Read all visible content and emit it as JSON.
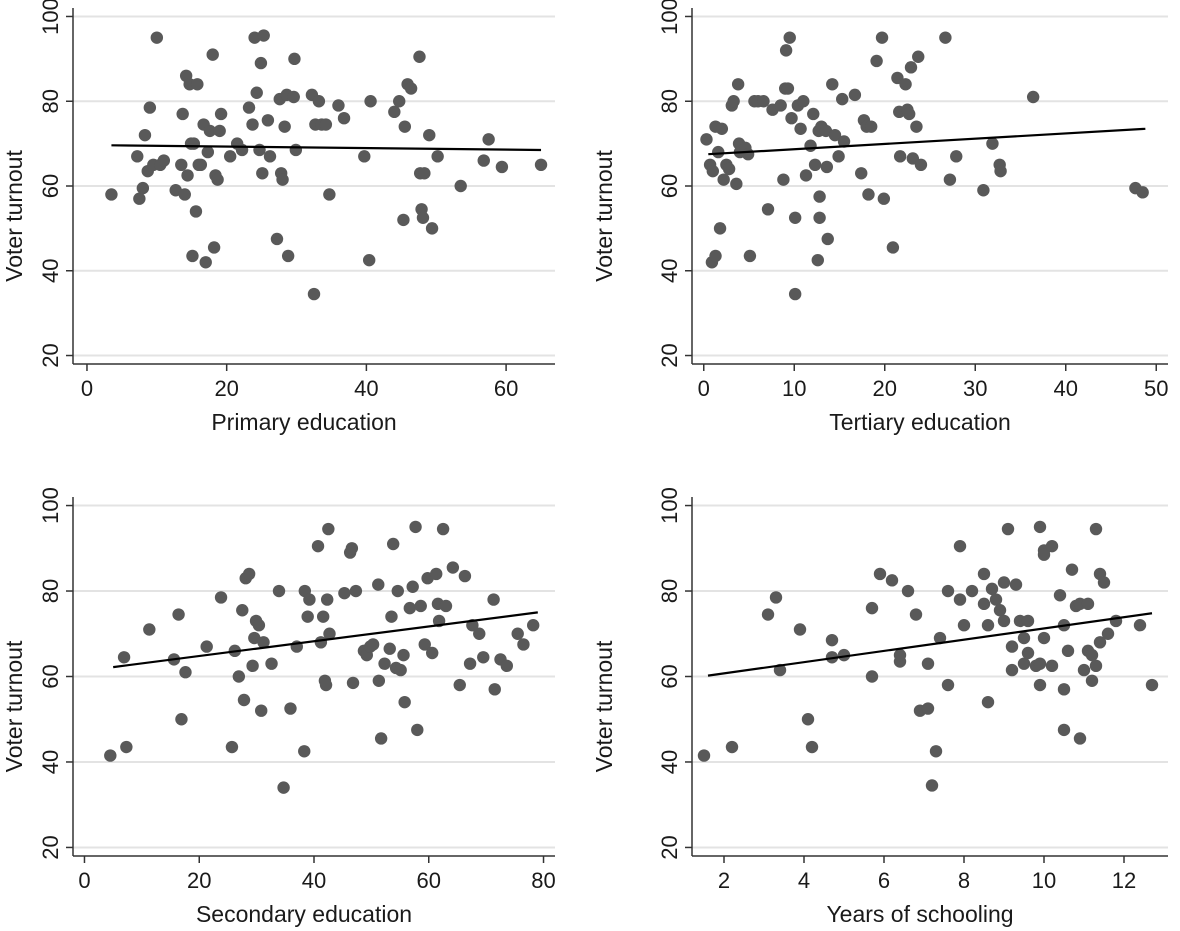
{
  "chart_data": [
    {
      "type": "scatter",
      "xlabel": "Primary education",
      "ylabel": "Voter turnout",
      "xlim": [
        -2,
        67
      ],
      "ylim": [
        18,
        102
      ],
      "xticks": [
        0,
        20,
        40,
        60
      ],
      "yticks": [
        20,
        40,
        60,
        80,
        100
      ],
      "grid": true,
      "fit_line": {
        "x": [
          3.5,
          65
        ],
        "y": [
          69.6,
          68.5
        ]
      },
      "points": [
        [
          3.5,
          58
        ],
        [
          7.2,
          67
        ],
        [
          7.5,
          57
        ],
        [
          8,
          59.5
        ],
        [
          8.3,
          72
        ],
        [
          8.7,
          63.5
        ],
        [
          9,
          78.5
        ],
        [
          9.5,
          65
        ],
        [
          10,
          95
        ],
        [
          10.5,
          65
        ],
        [
          11,
          66
        ],
        [
          12.7,
          59
        ],
        [
          13.5,
          65
        ],
        [
          13.7,
          77
        ],
        [
          14,
          58
        ],
        [
          14.2,
          86
        ],
        [
          14.4,
          62.5
        ],
        [
          14.7,
          84
        ],
        [
          14.9,
          70
        ],
        [
          15.1,
          43.5
        ],
        [
          15.3,
          70
        ],
        [
          15.6,
          54
        ],
        [
          15.8,
          84
        ],
        [
          16,
          65
        ],
        [
          16.3,
          65
        ],
        [
          16.7,
          74.5
        ],
        [
          17,
          42
        ],
        [
          17.3,
          68
        ],
        [
          17.6,
          73
        ],
        [
          18,
          91
        ],
        [
          18.2,
          45.5
        ],
        [
          18.4,
          62.5
        ],
        [
          18.7,
          61.5
        ],
        [
          19,
          73
        ],
        [
          19.2,
          77
        ],
        [
          20.5,
          67
        ],
        [
          21.5,
          70
        ],
        [
          22.2,
          68.5
        ],
        [
          23.2,
          78.5
        ],
        [
          23.7,
          74.5
        ],
        [
          24,
          95
        ],
        [
          24.3,
          82
        ],
        [
          24.7,
          68.5
        ],
        [
          24.9,
          89
        ],
        [
          25.1,
          63
        ],
        [
          25.3,
          95.5
        ],
        [
          25.9,
          75.5
        ],
        [
          26.2,
          67
        ],
        [
          27.2,
          47.5
        ],
        [
          27.6,
          80.5
        ],
        [
          27.8,
          63
        ],
        [
          28,
          61.5
        ],
        [
          28.3,
          74
        ],
        [
          28.6,
          81.5
        ],
        [
          28.8,
          43.5
        ],
        [
          29.6,
          81
        ],
        [
          29.7,
          90
        ],
        [
          29.9,
          68.5
        ],
        [
          32.2,
          81.5
        ],
        [
          32.5,
          34.5
        ],
        [
          32.7,
          74.5
        ],
        [
          33.2,
          80
        ],
        [
          33.6,
          74.5
        ],
        [
          34.2,
          74.5
        ],
        [
          34.7,
          58
        ],
        [
          36,
          79
        ],
        [
          36.8,
          76
        ],
        [
          39.7,
          67
        ],
        [
          40.4,
          42.5
        ],
        [
          40.6,
          80
        ],
        [
          44,
          77.5
        ],
        [
          44.7,
          80
        ],
        [
          45.3,
          52
        ],
        [
          45.5,
          74
        ],
        [
          45.9,
          84
        ],
        [
          46.4,
          83
        ],
        [
          47.6,
          90.5
        ],
        [
          47.7,
          63
        ],
        [
          47.9,
          54.5
        ],
        [
          48.1,
          52.5
        ],
        [
          48.3,
          63
        ],
        [
          49,
          72
        ],
        [
          49.4,
          50
        ],
        [
          50.2,
          67
        ],
        [
          53.5,
          60
        ],
        [
          56.8,
          66
        ],
        [
          57.5,
          71
        ],
        [
          59.4,
          64.5
        ],
        [
          65,
          65
        ]
      ]
    },
    {
      "type": "scatter",
      "xlabel": "Tertiary education",
      "ylabel": "Voter turnout",
      "xlim": [
        -1.3,
        51.3
      ],
      "ylim": [
        18,
        102
      ],
      "xticks": [
        0,
        10,
        20,
        30,
        40,
        50
      ],
      "yticks": [
        20,
        40,
        60,
        80,
        100
      ],
      "grid": true,
      "fit_line": {
        "x": [
          0.5,
          48.8
        ],
        "y": [
          67.5,
          73.5
        ]
      },
      "points": [
        [
          0.3,
          71
        ],
        [
          0.7,
          65
        ],
        [
          0.9,
          42
        ],
        [
          1,
          63.5
        ],
        [
          1.3,
          74
        ],
        [
          1.3,
          43.5
        ],
        [
          1.6,
          68
        ],
        [
          1.8,
          50
        ],
        [
          2,
          73.5
        ],
        [
          2.2,
          61.5
        ],
        [
          2.5,
          65
        ],
        [
          2.8,
          64
        ],
        [
          3.1,
          79
        ],
        [
          3.3,
          80
        ],
        [
          3.6,
          60.5
        ],
        [
          3.8,
          84
        ],
        [
          3.9,
          70
        ],
        [
          4,
          68
        ],
        [
          4.6,
          69
        ],
        [
          4.9,
          67.5
        ],
        [
          5.1,
          43.5
        ],
        [
          5.6,
          80
        ],
        [
          6,
          80
        ],
        [
          6.6,
          80
        ],
        [
          7.1,
          54.5
        ],
        [
          7.6,
          78
        ],
        [
          8.5,
          79
        ],
        [
          8.8,
          61.5
        ],
        [
          9,
          83
        ],
        [
          9.1,
          92
        ],
        [
          9.3,
          83
        ],
        [
          9.5,
          95
        ],
        [
          9.7,
          76
        ],
        [
          10.1,
          52.5
        ],
        [
          10.1,
          34.5
        ],
        [
          10.4,
          79
        ],
        [
          10.7,
          73.5
        ],
        [
          11,
          80
        ],
        [
          11.3,
          62.5
        ],
        [
          11.8,
          69.5
        ],
        [
          12.1,
          77
        ],
        [
          12.3,
          65
        ],
        [
          12.6,
          42.5
        ],
        [
          12.7,
          73
        ],
        [
          12.8,
          57.5
        ],
        [
          12.8,
          52.5
        ],
        [
          13,
          74
        ],
        [
          13.5,
          73
        ],
        [
          13.6,
          64.5
        ],
        [
          13.7,
          47.5
        ],
        [
          14.2,
          84
        ],
        [
          14.5,
          72
        ],
        [
          14.9,
          67
        ],
        [
          15.3,
          80.5
        ],
        [
          15.5,
          70.5
        ],
        [
          16.7,
          81.5
        ],
        [
          17.4,
          63
        ],
        [
          17.7,
          75.5
        ],
        [
          18,
          74
        ],
        [
          18.2,
          58
        ],
        [
          18.5,
          74
        ],
        [
          19.1,
          89.5
        ],
        [
          19.7,
          95
        ],
        [
          19.9,
          57
        ],
        [
          20.9,
          45.5
        ],
        [
          21.4,
          85.5
        ],
        [
          21.6,
          77.5
        ],
        [
          21.7,
          67
        ],
        [
          22.3,
          84
        ],
        [
          22.5,
          78
        ],
        [
          22.7,
          77
        ],
        [
          22.9,
          88
        ],
        [
          23.1,
          66.5
        ],
        [
          23.5,
          74
        ],
        [
          23.7,
          90.5
        ],
        [
          24,
          65
        ],
        [
          26.7,
          95
        ],
        [
          27.2,
          61.5
        ],
        [
          27.9,
          67
        ],
        [
          30.9,
          59
        ],
        [
          31.9,
          70
        ],
        [
          32.7,
          65
        ],
        [
          32.8,
          63.5
        ],
        [
          36.4,
          81
        ],
        [
          47.7,
          59.5
        ],
        [
          48.5,
          58.5
        ]
      ]
    },
    {
      "type": "scatter",
      "xlabel": "Secondary education",
      "ylabel": "Voter turnout",
      "xlim": [
        -2,
        82
      ],
      "ylim": [
        18,
        102
      ],
      "xticks": [
        0,
        20,
        40,
        60,
        80
      ],
      "yticks": [
        20,
        40,
        60,
        80,
        100
      ],
      "grid": true,
      "fit_line": {
        "x": [
          5,
          79
        ],
        "y": [
          62.2,
          75
        ]
      },
      "points": [
        [
          4.5,
          41.5
        ],
        [
          6.9,
          64.5
        ],
        [
          7.3,
          43.5
        ],
        [
          11.3,
          71
        ],
        [
          15.6,
          64
        ],
        [
          16.4,
          74.5
        ],
        [
          16.9,
          50
        ],
        [
          17.6,
          61
        ],
        [
          21.3,
          67
        ],
        [
          23.8,
          78.5
        ],
        [
          25.7,
          43.5
        ],
        [
          26.2,
          66
        ],
        [
          26.9,
          60
        ],
        [
          27.5,
          75.5
        ],
        [
          27.8,
          54.5
        ],
        [
          28.1,
          83
        ],
        [
          28.7,
          84
        ],
        [
          29.3,
          62.5
        ],
        [
          29.6,
          69
        ],
        [
          29.9,
          73
        ],
        [
          30.4,
          72
        ],
        [
          30.8,
          52
        ],
        [
          31.2,
          68
        ],
        [
          32.6,
          63
        ],
        [
          33.9,
          80
        ],
        [
          34.7,
          34
        ],
        [
          35.9,
          52.5
        ],
        [
          37,
          67
        ],
        [
          38.3,
          42.5
        ],
        [
          38.4,
          80
        ],
        [
          38.9,
          74
        ],
        [
          39.2,
          78
        ],
        [
          40.7,
          90.5
        ],
        [
          41.2,
          68
        ],
        [
          41.6,
          74
        ],
        [
          41.9,
          59
        ],
        [
          42.1,
          58
        ],
        [
          42.3,
          78
        ],
        [
          42.5,
          94.5
        ],
        [
          42.7,
          70
        ],
        [
          45.3,
          79.5
        ],
        [
          46.3,
          89
        ],
        [
          46.6,
          90
        ],
        [
          46.8,
          58.5
        ],
        [
          47.3,
          80
        ],
        [
          48.7,
          66
        ],
        [
          49.2,
          65
        ],
        [
          49.8,
          67
        ],
        [
          50.3,
          67.5
        ],
        [
          51.2,
          81.5
        ],
        [
          51.3,
          59
        ],
        [
          51.7,
          45.5
        ],
        [
          52.3,
          63
        ],
        [
          53.2,
          66.5
        ],
        [
          53.5,
          74
        ],
        [
          53.8,
          91
        ],
        [
          54.3,
          62
        ],
        [
          54.6,
          80
        ],
        [
          55.1,
          61.5
        ],
        [
          55.6,
          65
        ],
        [
          55.8,
          54
        ],
        [
          56.7,
          76
        ],
        [
          57.2,
          81
        ],
        [
          57.7,
          95
        ],
        [
          58,
          47.5
        ],
        [
          58.6,
          76.5
        ],
        [
          59.3,
          67.5
        ],
        [
          59.8,
          83
        ],
        [
          60.6,
          65.5
        ],
        [
          61.3,
          84
        ],
        [
          61.6,
          77
        ],
        [
          61.8,
          73
        ],
        [
          62.5,
          94.5
        ],
        [
          63,
          76.5
        ],
        [
          64.2,
          85.5
        ],
        [
          65.4,
          58
        ],
        [
          66.3,
          83.5
        ],
        [
          67.2,
          63
        ],
        [
          67.6,
          72
        ],
        [
          68.8,
          70
        ],
        [
          69.5,
          64.5
        ],
        [
          71.3,
          78
        ],
        [
          71.5,
          57
        ],
        [
          72.5,
          64
        ],
        [
          73.6,
          62.5
        ],
        [
          75.5,
          70
        ],
        [
          76.5,
          67.5
        ],
        [
          78.2,
          72
        ]
      ]
    },
    {
      "type": "scatter",
      "xlabel": "Years of schooling",
      "ylabel": "Voter turnout",
      "xlim": [
        1.2,
        13.1
      ],
      "ylim": [
        18,
        102
      ],
      "xticks": [
        2,
        4,
        6,
        8,
        10,
        12
      ],
      "yticks": [
        20,
        40,
        60,
        80,
        100
      ],
      "grid": true,
      "fit_line": {
        "x": [
          1.6,
          12.7
        ],
        "y": [
          60.2,
          74.8
        ]
      },
      "points": [
        [
          1.5,
          41.5
        ],
        [
          2.2,
          43.5
        ],
        [
          3.1,
          74.5
        ],
        [
          3.3,
          78.5
        ],
        [
          3.4,
          61.5
        ],
        [
          3.9,
          71
        ],
        [
          4.1,
          50
        ],
        [
          4.2,
          43.5
        ],
        [
          4.7,
          64.5
        ],
        [
          4.7,
          68.5
        ],
        [
          5,
          65
        ],
        [
          5.7,
          76
        ],
        [
          5.7,
          60
        ],
        [
          5.9,
          84
        ],
        [
          6.2,
          82.5
        ],
        [
          6.4,
          63.5
        ],
        [
          6.4,
          65
        ],
        [
          6.6,
          80
        ],
        [
          6.8,
          74.5
        ],
        [
          6.9,
          52
        ],
        [
          7.1,
          63
        ],
        [
          7.1,
          52.5
        ],
        [
          7.3,
          42.5
        ],
        [
          7.2,
          34.5
        ],
        [
          7.4,
          69
        ],
        [
          7.6,
          80
        ],
        [
          7.6,
          58
        ],
        [
          7.9,
          78
        ],
        [
          7.9,
          90.5
        ],
        [
          8,
          72
        ],
        [
          8.2,
          80
        ],
        [
          8.5,
          84
        ],
        [
          8.5,
          77
        ],
        [
          8.6,
          54
        ],
        [
          8.6,
          72
        ],
        [
          8.7,
          80.5
        ],
        [
          8.8,
          78
        ],
        [
          8.9,
          75.5
        ],
        [
          9,
          82
        ],
        [
          9,
          73
        ],
        [
          9.1,
          94.5
        ],
        [
          9.2,
          61.5
        ],
        [
          9.2,
          67
        ],
        [
          9.3,
          81.5
        ],
        [
          9.4,
          73
        ],
        [
          9.5,
          69
        ],
        [
          9.5,
          63
        ],
        [
          9.6,
          73
        ],
        [
          9.6,
          65.5
        ],
        [
          9.8,
          62.5
        ],
        [
          9.9,
          95
        ],
        [
          9.9,
          63
        ],
        [
          9.9,
          58
        ],
        [
          10,
          89.5
        ],
        [
          10,
          88.5
        ],
        [
          10,
          69
        ],
        [
          10.2,
          62.5
        ],
        [
          10.2,
          90.5
        ],
        [
          10.4,
          79
        ],
        [
          10.5,
          72
        ],
        [
          10.5,
          47.5
        ],
        [
          10.5,
          57
        ],
        [
          10.6,
          66
        ],
        [
          10.7,
          85
        ],
        [
          10.8,
          76.5
        ],
        [
          10.9,
          45.5
        ],
        [
          10.9,
          77
        ],
        [
          11,
          61.5
        ],
        [
          11.1,
          66
        ],
        [
          11.1,
          77
        ],
        [
          11.2,
          65
        ],
        [
          11.2,
          59
        ],
        [
          11.3,
          62.5
        ],
        [
          11.3,
          94.5
        ],
        [
          11.4,
          84
        ],
        [
          11.4,
          68
        ],
        [
          11.5,
          82
        ],
        [
          11.6,
          70
        ],
        [
          11.8,
          73
        ],
        [
          12.4,
          72
        ],
        [
          12.7,
          58
        ]
      ]
    }
  ]
}
